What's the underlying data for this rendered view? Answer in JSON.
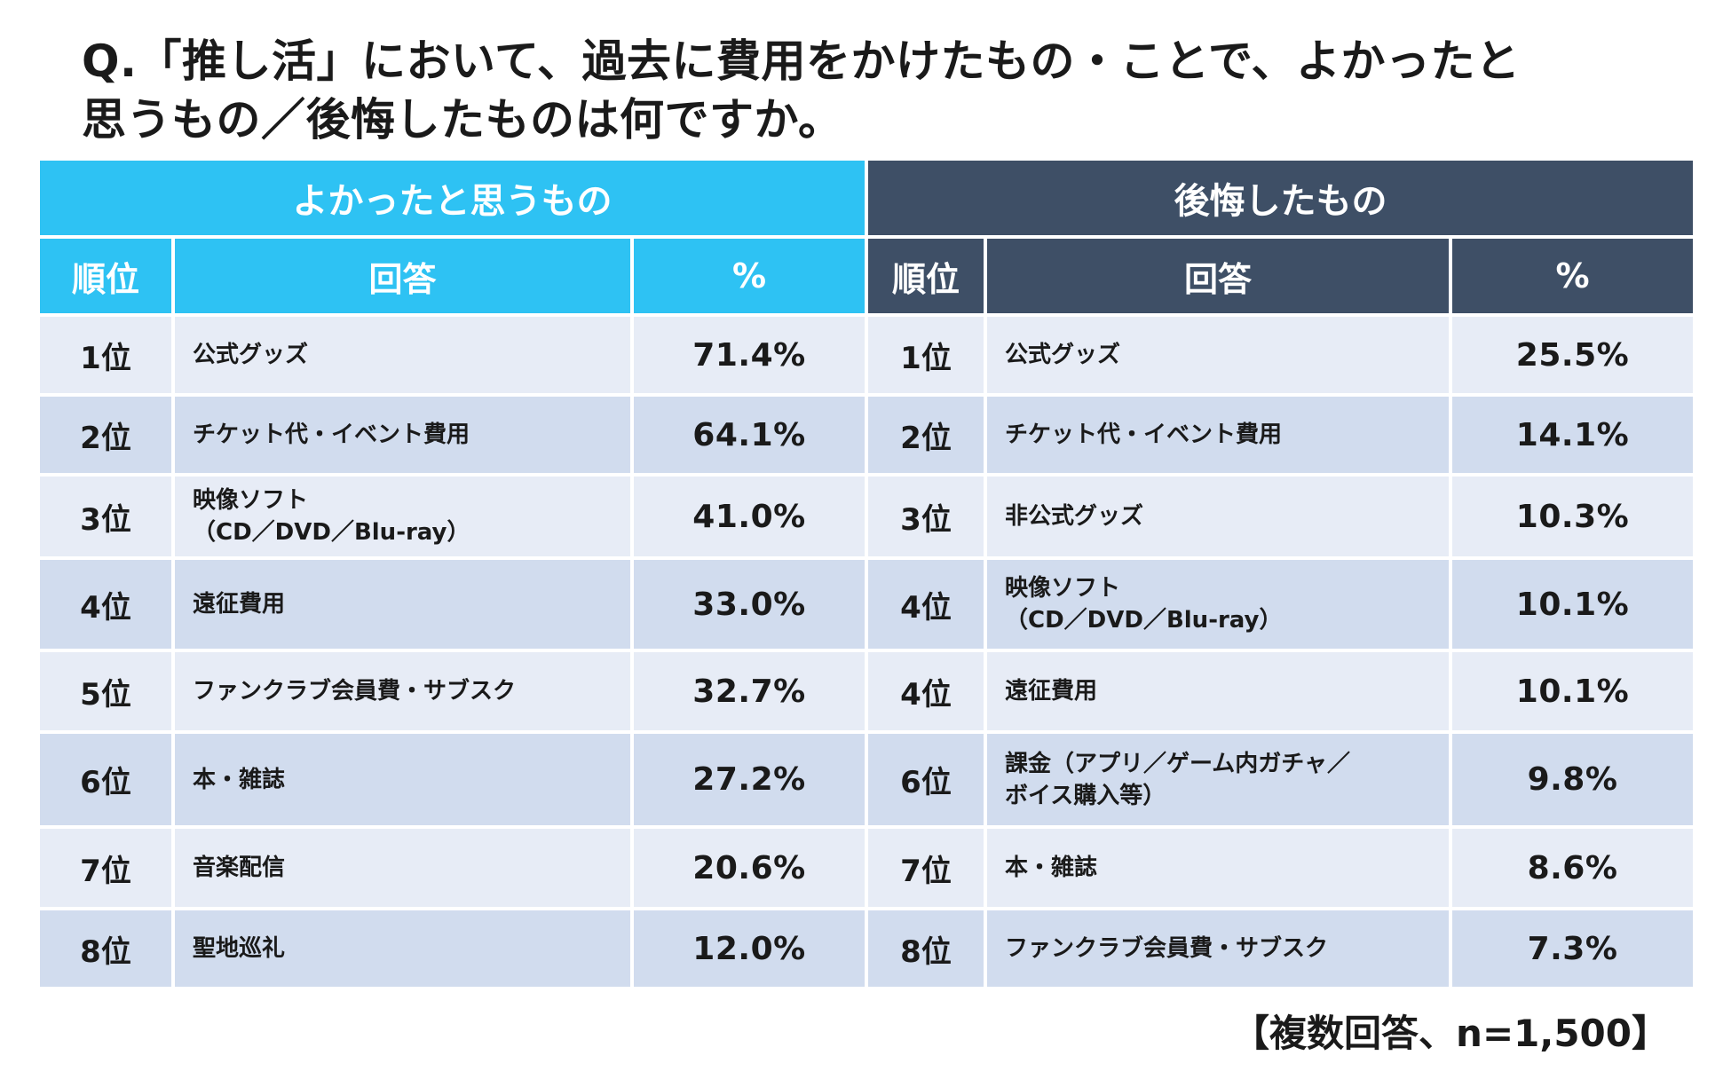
{
  "question": {
    "line1": "Q.「推し活」において、過去に費用をかけたもの・ことで、よかったと",
    "line2": "思うもの／後悔したものは何ですか。"
  },
  "colors": {
    "good_header": "#2ec2f3",
    "regret_header": "#3e4f66",
    "row_light": "#e7ecf6",
    "row_dark": "#d1dcee"
  },
  "good": {
    "title": "よかったと思うもの",
    "columns": [
      "順位",
      "回答",
      "%"
    ],
    "rows": [
      {
        "rank": "1位",
        "answer": "公式グッズ",
        "pct": "71.4%"
      },
      {
        "rank": "2位",
        "answer": "チケット代・イベント費用",
        "pct": "64.1%"
      },
      {
        "rank": "3位",
        "answer": "映像ソフト\n（CD／DVD／Blu-ray）",
        "pct": "41.0%"
      },
      {
        "rank": "4位",
        "answer": "遠征費用",
        "pct": "33.0%"
      },
      {
        "rank": "5位",
        "answer": "ファンクラブ会員費・サブスク",
        "pct": "32.7%"
      },
      {
        "rank": "6位",
        "answer": "本・雑誌",
        "pct": "27.2%"
      },
      {
        "rank": "7位",
        "answer": "音楽配信",
        "pct": "20.6%"
      },
      {
        "rank": "8位",
        "answer": "聖地巡礼",
        "pct": "12.0%"
      }
    ]
  },
  "regret": {
    "title": "後悔したもの",
    "columns": [
      "順位",
      "回答",
      "%"
    ],
    "rows": [
      {
        "rank": "1位",
        "answer": "公式グッズ",
        "pct": "25.5%"
      },
      {
        "rank": "2位",
        "answer": "チケット代・イベント費用",
        "pct": "14.1%"
      },
      {
        "rank": "3位",
        "answer": "非公式グッズ",
        "pct": "10.3%"
      },
      {
        "rank": "4位",
        "answer": "映像ソフト\n（CD／DVD／Blu-ray）",
        "pct": "10.1%"
      },
      {
        "rank": "4位",
        "answer": "遠征費用",
        "pct": "10.1%"
      },
      {
        "rank": "6位",
        "answer": "課金（アプリ／ゲーム内ガチャ／\nボイス購入等）",
        "pct": "9.8%"
      },
      {
        "rank": "7位",
        "answer": "本・雑誌",
        "pct": "8.6%"
      },
      {
        "rank": "8位",
        "answer": "ファンクラブ会員費・サブスク",
        "pct": "7.3%"
      }
    ]
  },
  "footnote": "【複数回答、n=1,500】"
}
